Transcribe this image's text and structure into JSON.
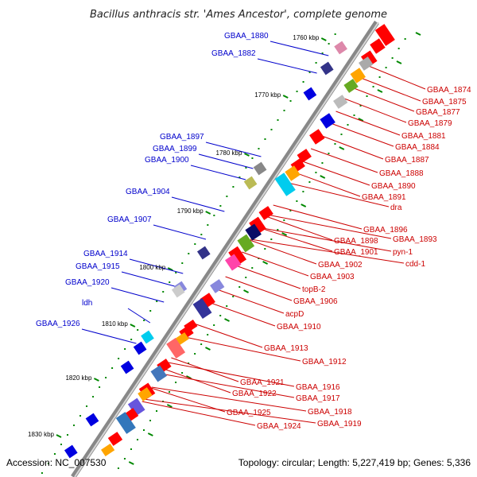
{
  "title": "Bacillus anthracis str. 'Ames Ancestor', complete genome",
  "footer": {
    "accession": "Accession: NC_007530",
    "topology": "Topology: circular; Length: 5,227,419 bp; Genes: 5,336"
  },
  "colors": {
    "forward_gene": "#0000e0",
    "reverse_gene": "#ff0000",
    "forward_label": "#0000cc",
    "reverse_label": "#cc0000",
    "backbone": "#888888",
    "kbp_tick": "#008800"
  },
  "scale_labels": [
    "1760 kbp",
    "1770 kbp",
    "1780 kbp",
    "1790 kbp",
    "1800 kbp",
    "1810 kbp",
    "1820 kbp",
    "1830 kbp"
  ],
  "forward_labels": [
    "GBAA_1880",
    "GBAA_1882",
    "GBAA_1897",
    "GBAA_1899",
    "GBAA_1900",
    "GBAA_1904",
    "GBAA_1907",
    "GBAA_1914",
    "GBAA_1915",
    "GBAA_1920",
    "ldh",
    "GBAA_1926"
  ],
  "reverse_labels": [
    "GBAA_1874",
    "GBAA_1875",
    "GBAA_1877",
    "GBAA_1879",
    "GBAA_1881",
    "GBAA_1884",
    "GBAA_1887",
    "GBAA_1888",
    "GBAA_1890",
    "GBAA_1891",
    "dra",
    "GBAA_1896",
    "GBAA_1893",
    "GBAA_1898",
    "pyn-1",
    "GBAA_1901",
    "cdd-1",
    "GBAA_1902",
    "GBAA_1903",
    "topB-2",
    "GBAA_1906",
    "acpD",
    "GBAA_1910",
    "GBAA_1913",
    "GBAA_1912",
    "GBAA_1921",
    "GBAA_1916",
    "GBAA_1922",
    "GBAA_1917",
    "GBAA_1918",
    "GBAA_1925",
    "GBAA_1919",
    "GBAA_1924"
  ]
}
